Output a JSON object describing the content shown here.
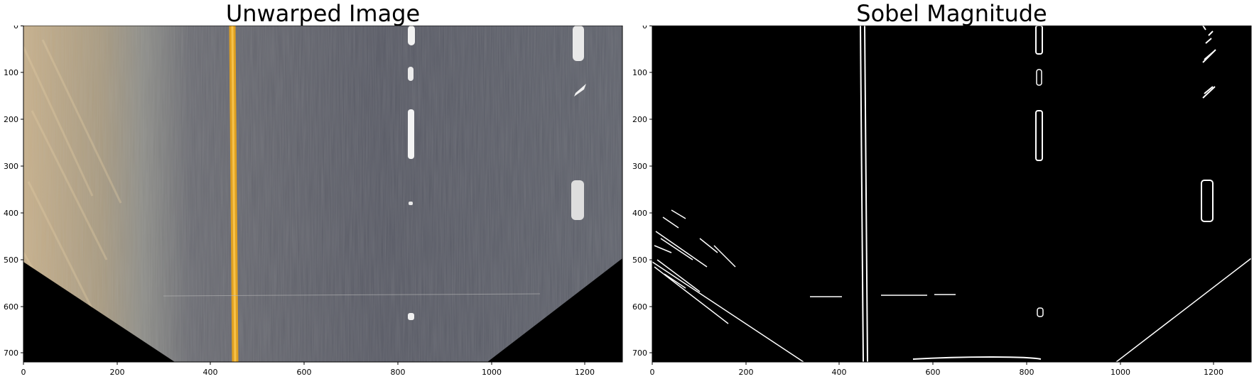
{
  "figure": {
    "panels": [
      {
        "title": "Unwarped Image",
        "image_kind": "perspective-warped road photo (bird's-eye), asphalt with yellow left line and white dashed lane lines, dirt shoulder on left, black corners at bottom",
        "x_ticks": [
          "0",
          "200",
          "400",
          "600",
          "800",
          "1000",
          "1200"
        ],
        "y_ticks": [
          "0",
          "100",
          "200",
          "300",
          "400",
          "500",
          "600",
          "700"
        ]
      },
      {
        "title": "Sobel Magnitude",
        "image_kind": "binary edge map (white edges on black)",
        "x_ticks": [
          "0",
          "200",
          "400",
          "600",
          "800",
          "1000",
          "1200"
        ],
        "y_ticks": [
          "0",
          "100",
          "200",
          "300",
          "400",
          "500",
          "600",
          "700"
        ]
      }
    ],
    "image_extent": {
      "width": 1280,
      "height": 720
    },
    "colors": {
      "asphalt": "#5b5d66",
      "yellow_line": "#e0a020",
      "white_line": "#f2f2f2",
      "shoulder": "#b49f7c",
      "background_black": "#000000"
    }
  }
}
